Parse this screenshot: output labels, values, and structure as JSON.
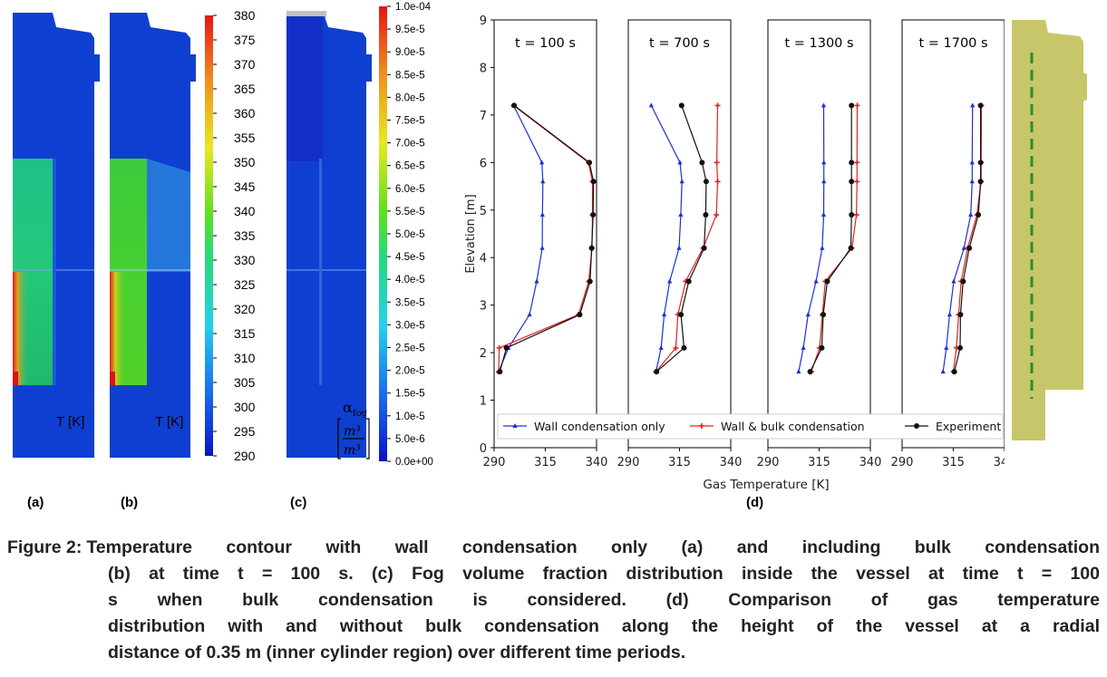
{
  "contours": {
    "a": {
      "label": "(a)",
      "unit_label": "T [K]"
    },
    "b": {
      "label": "(b)",
      "unit_label": "T [K]"
    },
    "c": {
      "label": "(c)",
      "unit_label_top": "α",
      "unit_label_sub": "fog",
      "unit_label_frac_num": "m³",
      "unit_label_frac_den": "m³"
    }
  },
  "temperature_scale": {
    "ticks": [
      "380",
      "375",
      "370",
      "365",
      "360",
      "355",
      "350",
      "345",
      "340",
      "335",
      "330",
      "325",
      "320",
      "315",
      "310",
      "305",
      "300",
      "295",
      "290"
    ],
    "min": 290,
    "max": 380
  },
  "fog_scale": {
    "ticks": [
      "1.0e-04",
      "9.5e-5",
      "9.0e-5",
      "8.5e-5",
      "8.0e-5",
      "7.5e-5",
      "7.0e-5",
      "6.5e-5",
      "6.0e-5",
      "5.5e-5",
      "5.0e-5",
      "4.5e-5",
      "4.0e-5",
      "3.5e-5",
      "3.0e-5",
      "2.5e-5",
      "2.0e-5",
      "1.5e-5",
      "1.0e-5",
      "5.0e-6",
      "0.0e+00"
    ]
  },
  "chart_data": {
    "type": "line",
    "label": "(d)",
    "xlabel": "Gas Temperature [K]",
    "ylabel": "Elevation [m]",
    "xlim": [
      290,
      340
    ],
    "ylim": [
      0,
      9
    ],
    "x_ticks": [
      "290",
      "315",
      "340"
    ],
    "y_ticks": [
      "0",
      "1",
      "2",
      "3",
      "4",
      "5",
      "6",
      "7",
      "8",
      "9"
    ],
    "legend_position": "bottom",
    "grid": false,
    "series_styles": [
      {
        "name": "Wall condensation only",
        "color": "#1f2fd6",
        "marker": "tri"
      },
      {
        "name": "Wall & bulk condensation",
        "color": "#e0231c",
        "marker": "plus"
      },
      {
        "name": "Experiment",
        "color": "#111111",
        "marker": "dot"
      }
    ],
    "subplots": [
      {
        "title": "t =  100 s",
        "series": [
          {
            "name": "Wall condensation only",
            "x": [
              292.2,
              297.0,
              307.3,
              310.8,
              313.5,
              313.6,
              313.8,
              313.3,
              299.5
            ],
            "y": [
              1.6,
              2.1,
              2.8,
              3.5,
              4.2,
              4.9,
              5.6,
              6.0,
              7.2
            ]
          },
          {
            "name": "Wall & bulk condensation",
            "x": [
              292.2,
              292.5,
              331.2,
              336.2,
              337.8,
              338.0,
              338.0,
              336.0,
              299.5
            ],
            "y": [
              1.6,
              2.1,
              2.8,
              3.5,
              4.2,
              4.9,
              5.6,
              6.0,
              7.2
            ]
          },
          {
            "name": "Experiment",
            "x": [
              292.8,
              296.0,
              331.8,
              336.8,
              337.6,
              338.3,
              338.5,
              336.5,
              299.8
            ],
            "y": [
              1.6,
              2.1,
              2.8,
              3.5,
              4.2,
              4.9,
              5.6,
              6.0,
              7.2
            ]
          }
        ]
      },
      {
        "title": "t =  700 s",
        "series": [
          {
            "name": "Wall condensation only",
            "x": [
              303.5,
              306.0,
              307.5,
              310.2,
              314.8,
              315.6,
              316.2,
              315.2,
              301.2
            ],
            "y": [
              1.6,
              2.1,
              2.8,
              3.5,
              4.2,
              4.9,
              5.6,
              6.0,
              7.2
            ]
          },
          {
            "name": "Wall & bulk condensation",
            "x": [
              303.5,
              313.2,
              314.2,
              318.0,
              326.5,
              333.0,
              333.6,
              333.2,
              333.6
            ],
            "y": [
              1.6,
              2.1,
              2.8,
              3.5,
              4.2,
              4.9,
              5.6,
              6.0,
              7.2
            ]
          },
          {
            "name": "Experiment",
            "x": [
              303.8,
              317.2,
              315.7,
              319.5,
              327.0,
              327.8,
              328.0,
              326.0,
              316.0
            ],
            "y": [
              1.6,
              2.1,
              2.8,
              3.5,
              4.2,
              4.9,
              5.6,
              6.0,
              7.2
            ]
          }
        ]
      },
      {
        "title": "t =  1300 s",
        "series": [
          {
            "name": "Wall condensation only",
            "x": [
              305.0,
              307.3,
              309.6,
              313.5,
              316.5,
              317.2,
              317.3,
              317.3,
              317.2
            ],
            "y": [
              1.6,
              2.1,
              2.8,
              3.5,
              4.2,
              4.9,
              5.6,
              6.0,
              7.2
            ]
          },
          {
            "name": "Wall & bulk condensation",
            "x": [
              311.2,
              315.2,
              316.6,
              318.0,
              331.0,
              333.2,
              333.5,
              333.5,
              333.6
            ],
            "y": [
              1.6,
              2.1,
              2.8,
              3.5,
              4.2,
              4.9,
              5.6,
              6.0,
              7.2
            ]
          },
          {
            "name": "Experiment",
            "x": [
              310.6,
              316.3,
              317.0,
              319.0,
              330.5,
              330.8,
              330.8,
              330.8,
              330.8
            ],
            "y": [
              1.6,
              2.1,
              2.8,
              3.5,
              4.2,
              4.9,
              5.6,
              6.0,
              7.2
            ]
          }
        ]
      },
      {
        "title": "t =  1700 s",
        "series": [
          {
            "name": "Wall condensation only",
            "x": [
              310.0,
              311.6,
              313.2,
              315.2,
              320.2,
              323.5,
              324.2,
              324.2,
              324.4
            ],
            "y": [
              1.6,
              2.1,
              2.8,
              3.5,
              4.2,
              4.9,
              5.6,
              6.0,
              7.2
            ]
          },
          {
            "name": "Wall & bulk condensation",
            "x": [
              315.0,
              316.5,
              317.6,
              318.8,
              322.0,
              326.5,
              328.6,
              328.6,
              328.7
            ],
            "y": [
              1.6,
              2.1,
              2.8,
              3.5,
              4.2,
              4.9,
              5.6,
              6.0,
              7.2
            ]
          },
          {
            "name": "Experiment",
            "x": [
              315.5,
              318.3,
              318.5,
              319.8,
              322.8,
              327.2,
              328.3,
              328.3,
              328.3
            ],
            "y": [
              1.6,
              2.1,
              2.8,
              3.5,
              4.2,
              4.9,
              5.6,
              6.0,
              7.2
            ]
          }
        ]
      }
    ]
  },
  "caption": {
    "fig_label": "Figure 2:",
    "lines": [
      "Temperature contour with wall condensation only (a) and including bulk condensation",
      "(b) at time t = 100 s. (c) Fog volume fraction distribution inside the vessel at time t = 100",
      "s when bulk condensation is considered. (d) Comparison of gas temperature",
      "distribution with and without bulk condensation along the height of the vessel at a radial",
      "distance of 0.35 m (inner cylinder region) over different time periods."
    ]
  },
  "colors": {
    "wall_only": "#1f2fd6",
    "wall_bulk": "#e0231c",
    "experiment": "#111111",
    "vessel_side": "#c8c66a",
    "probe_line": "#2e8b2e"
  }
}
